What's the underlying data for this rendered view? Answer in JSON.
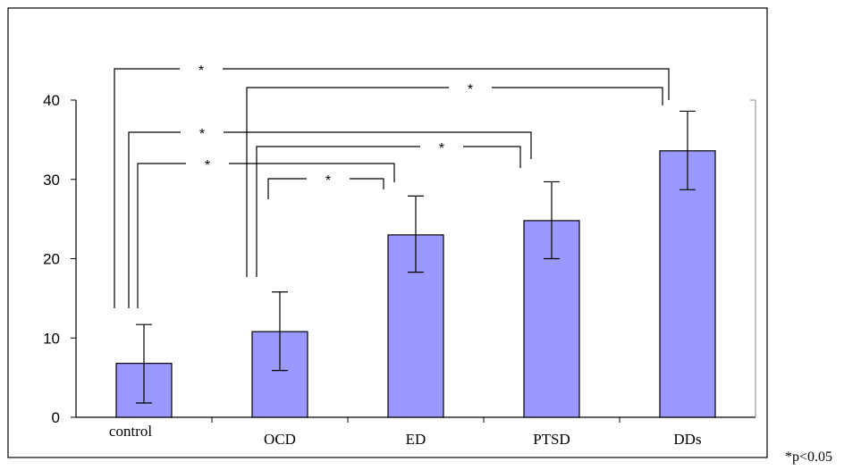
{
  "chart_data": {
    "type": "bar",
    "categories": [
      "control",
      "OCD",
      "ED",
      "PTSD",
      "DDs"
    ],
    "values": [
      6.8,
      10.8,
      23.0,
      24.8,
      33.6
    ],
    "error_low": [
      1.8,
      5.9,
      18.3,
      20.0,
      28.7
    ],
    "error_high": [
      11.7,
      15.8,
      27.9,
      29.7,
      38.6
    ],
    "ylim": [
      0,
      40
    ],
    "yticks": [
      0,
      10,
      20,
      30,
      40
    ],
    "bar_color": "#9999ff",
    "significance": [
      {
        "from": "control",
        "to": "DDs",
        "label": "*"
      },
      {
        "from": "OCD",
        "to": "DDs",
        "label": "*"
      },
      {
        "from": "control",
        "to": "PTSD",
        "label": "*"
      },
      {
        "from": "OCD",
        "to": "PTSD",
        "label": "*"
      },
      {
        "from": "control",
        "to": "ED",
        "label": "*"
      },
      {
        "from": "OCD",
        "to": "ED",
        "label": "*"
      }
    ],
    "footnote": "*p<0.05",
    "grid": false
  }
}
